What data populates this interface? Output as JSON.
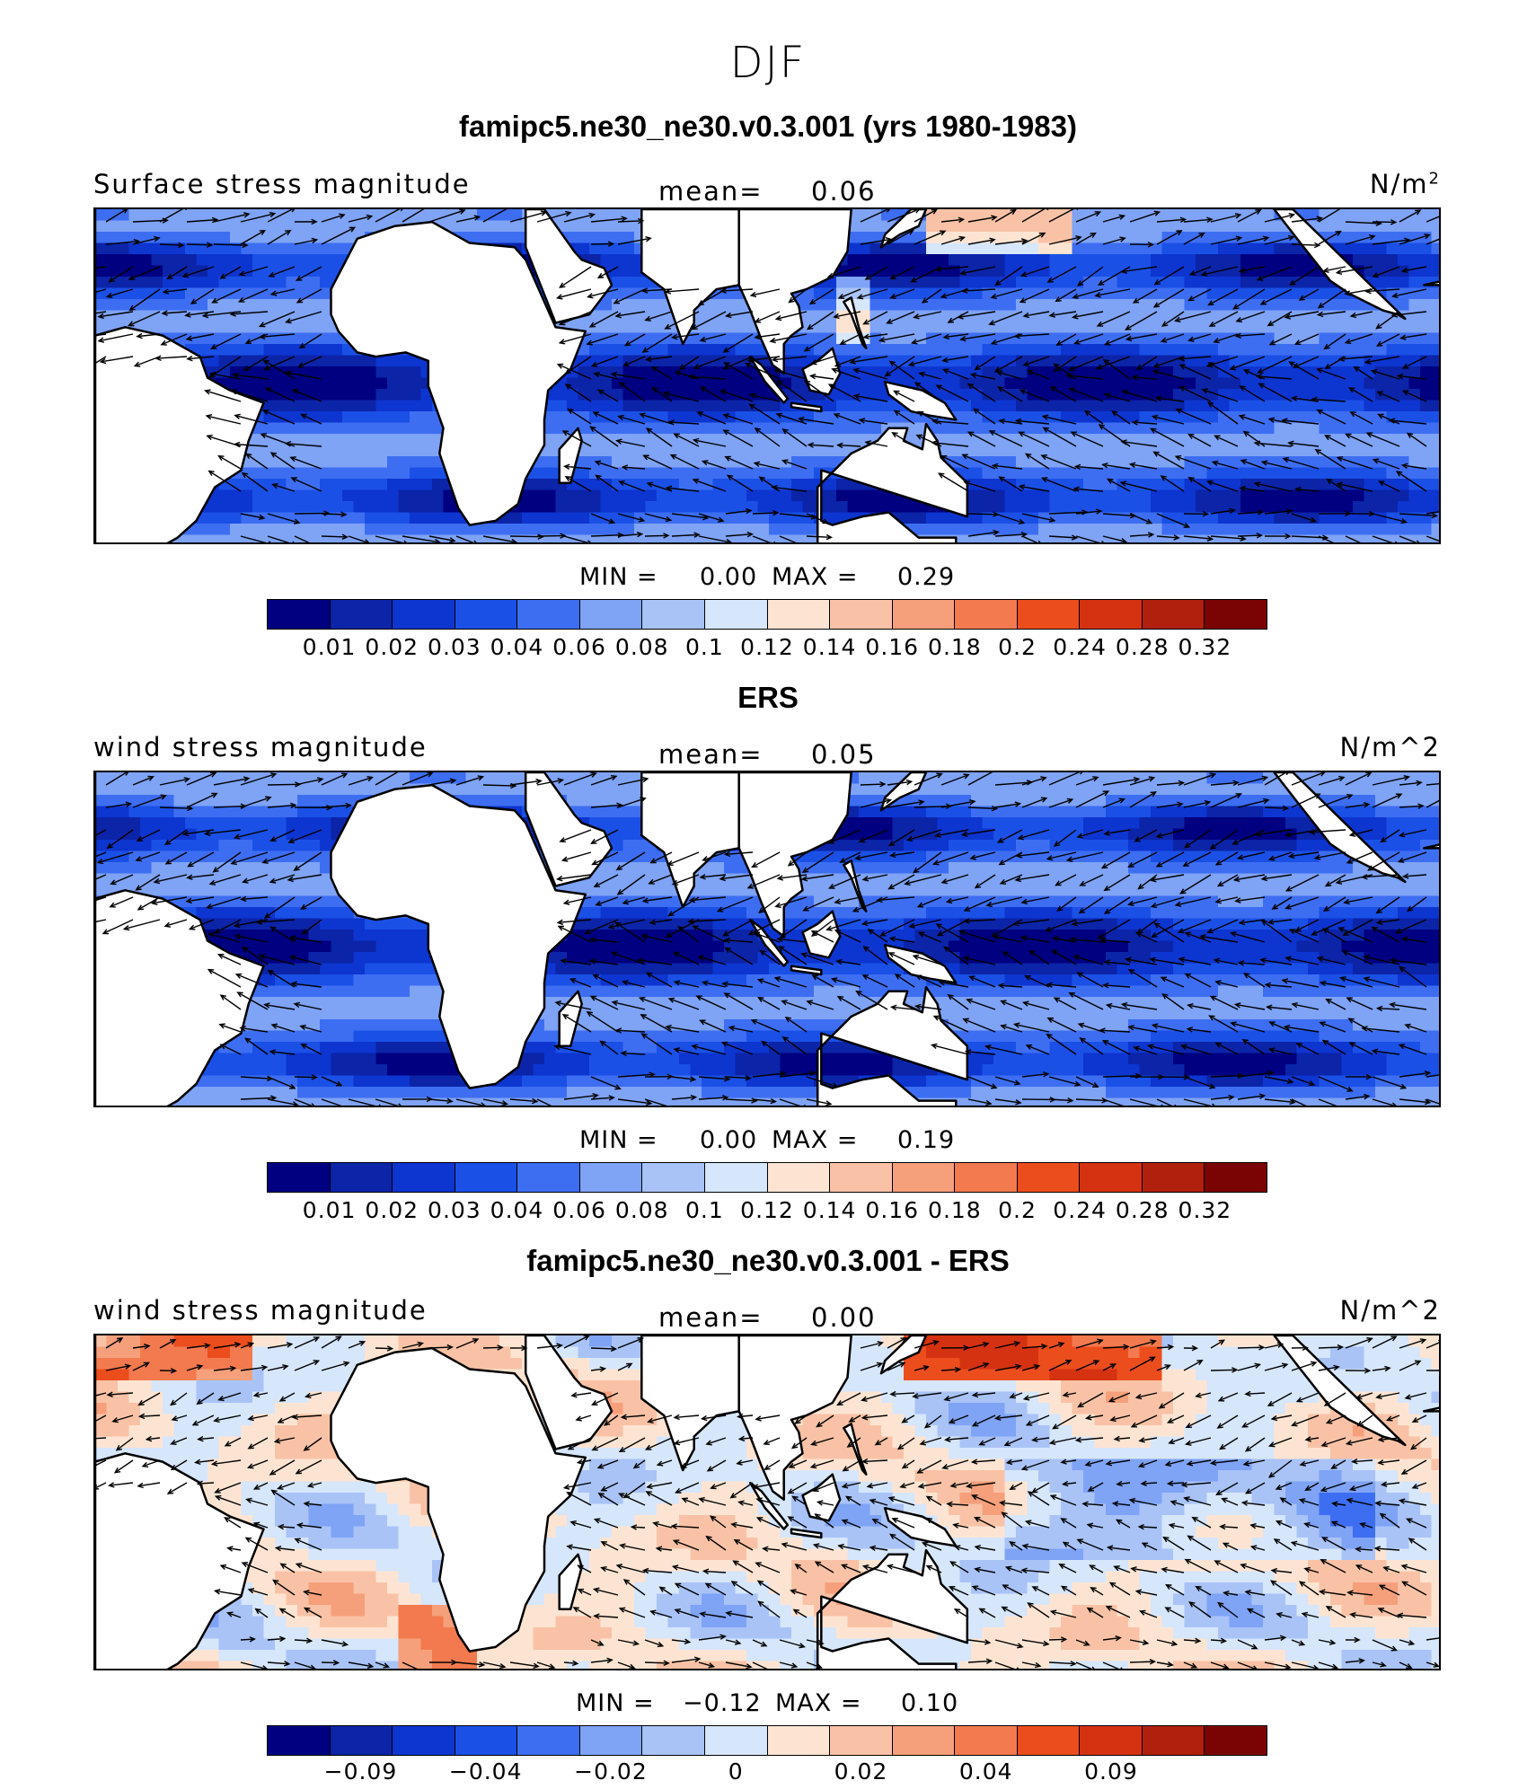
{
  "title": "DJF",
  "colors": [
    "#000080",
    "#0b24a8",
    "#0d35d0",
    "#1a50e6",
    "#3d6ef2",
    "#7fa3f5",
    "#a9c3f7",
    "#d6e6fb",
    "#fde4d2",
    "#f9c2a6",
    "#f5a07b",
    "#f27a4e",
    "#ec4d1d",
    "#d43210",
    "#b0200c",
    "#7a0303"
  ],
  "land_color": "#ffffff",
  "panels": [
    {
      "title": "famipc5.ne30_ne30.v0.3.001 (yrs 1980-1983)",
      "variable": "Surface stress magnitude",
      "mean_label": "mean=",
      "mean_value": "0.06",
      "units_base": "N/m",
      "units_sup": "2",
      "min_label": "MIN =",
      "min_value": "0.00",
      "max_label": "MAX =",
      "max_value": "0.29",
      "ticks": [
        "0.01",
        "0.02",
        "0.03",
        "0.04",
        "0.06",
        "0.08",
        "0.1",
        "0.12",
        "0.14",
        "0.16",
        "0.18",
        "0.2",
        "0.24",
        "0.28",
        "0.32"
      ],
      "field_type": "absolute"
    },
    {
      "title": "ERS",
      "variable": "wind stress magnitude",
      "mean_label": "mean=",
      "mean_value": "0.05",
      "units_base": "N/m^2",
      "units_sup": "",
      "min_label": "MIN =",
      "min_value": "0.00",
      "max_label": "MAX =",
      "max_value": "0.19",
      "ticks": [
        "0.01",
        "0.02",
        "0.03",
        "0.04",
        "0.06",
        "0.08",
        "0.1",
        "0.12",
        "0.14",
        "0.16",
        "0.18",
        "0.2",
        "0.24",
        "0.28",
        "0.32"
      ],
      "field_type": "absolute"
    },
    {
      "title": "famipc5.ne30_ne30.v0.3.001 - ERS",
      "variable": "wind stress magnitude",
      "mean_label": "mean=",
      "mean_value": "0.00",
      "units_base": "N/m^2",
      "units_sup": "",
      "min_label": "MIN =",
      "min_value": "−0.12",
      "max_label": "MAX =",
      "max_value": "0.10",
      "ticks": [
        "−0.09",
        "",
        "−0.04",
        "",
        "−0.02",
        "",
        "0",
        "",
        "0.02",
        "",
        "0.04",
        "",
        "0.09"
      ],
      "field_type": "difference"
    }
  ]
}
